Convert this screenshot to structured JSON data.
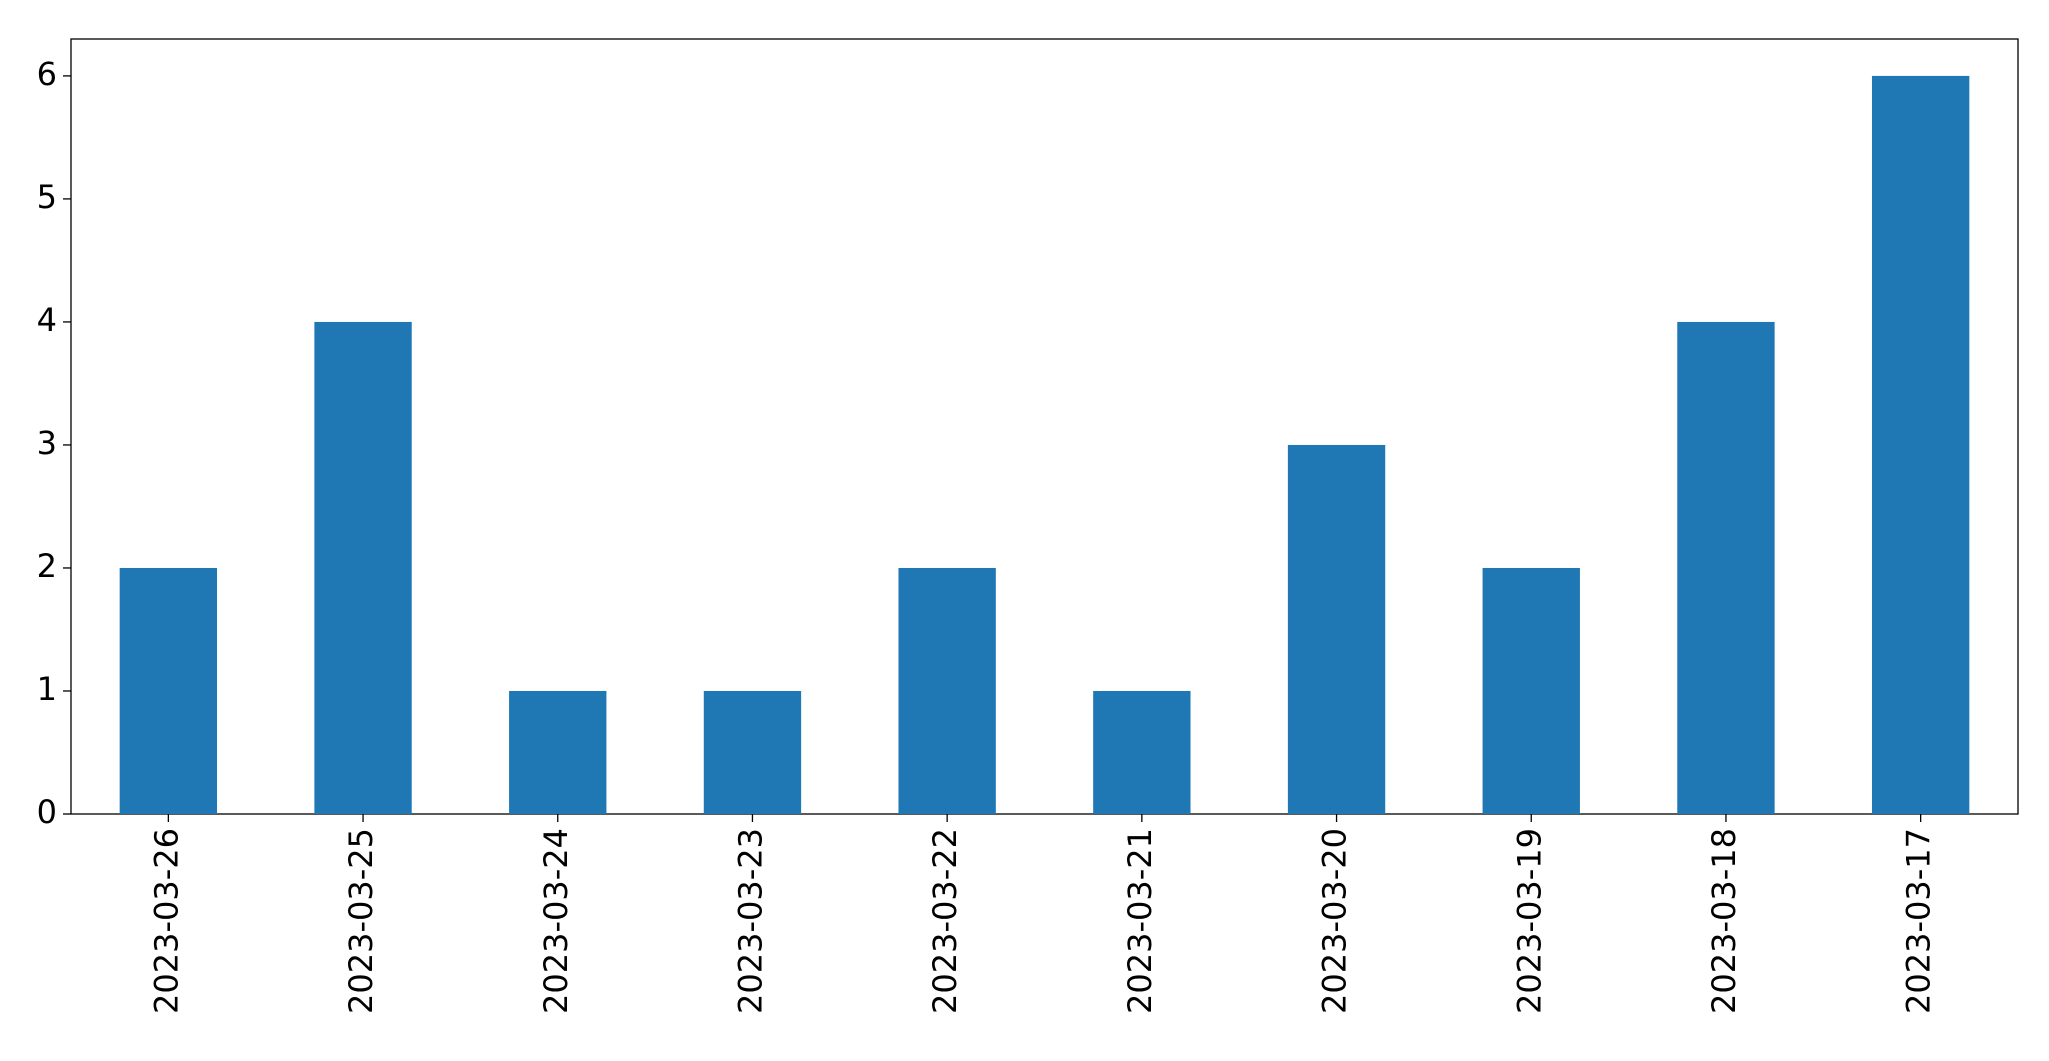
{
  "chart_data": {
    "type": "bar",
    "categories": [
      "2023-03-26",
      "2023-03-25",
      "2023-03-24",
      "2023-03-23",
      "2023-03-22",
      "2023-03-21",
      "2023-03-20",
      "2023-03-19",
      "2023-03-18",
      "2023-03-17"
    ],
    "values": [
      2,
      4,
      1,
      1,
      2,
      1,
      3,
      2,
      4,
      6
    ],
    "color": "#1f77b4",
    "ylim": [
      0,
      6.3
    ],
    "yticks": [
      0,
      1,
      2,
      3,
      4,
      5,
      6
    ],
    "grid": false
  }
}
